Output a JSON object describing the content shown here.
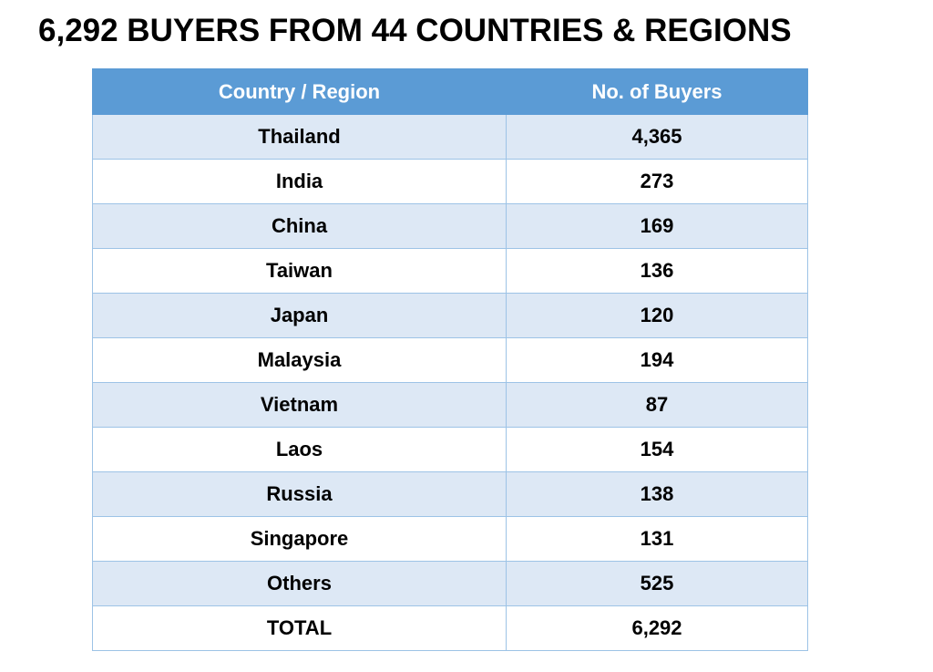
{
  "title": "6,292 BUYERS FROM 44 COUNTRIES & REGIONS",
  "table": {
    "headers": {
      "country": "Country / Region",
      "buyers": "No. of Buyers"
    },
    "rows": [
      {
        "country": "Thailand",
        "buyers": "4,365"
      },
      {
        "country": "India",
        "buyers": "273"
      },
      {
        "country": "China",
        "buyers": "169"
      },
      {
        "country": "Taiwan",
        "buyers": "136"
      },
      {
        "country": "Japan",
        "buyers": "120"
      },
      {
        "country": "Malaysia",
        "buyers": "194"
      },
      {
        "country": "Vietnam",
        "buyers": "87"
      },
      {
        "country": "Laos",
        "buyers": "154"
      },
      {
        "country": "Russia",
        "buyers": "138"
      },
      {
        "country": "Singapore",
        "buyers": "131"
      },
      {
        "country": "Others",
        "buyers": "525"
      },
      {
        "country": "TOTAL",
        "buyers": "6,292"
      }
    ]
  },
  "colors": {
    "header_bg": "#5b9bd5",
    "header_text": "#ffffff",
    "row_band": "#dde8f5",
    "row_plain": "#ffffff",
    "grid_line": "#9dc3e6"
  }
}
